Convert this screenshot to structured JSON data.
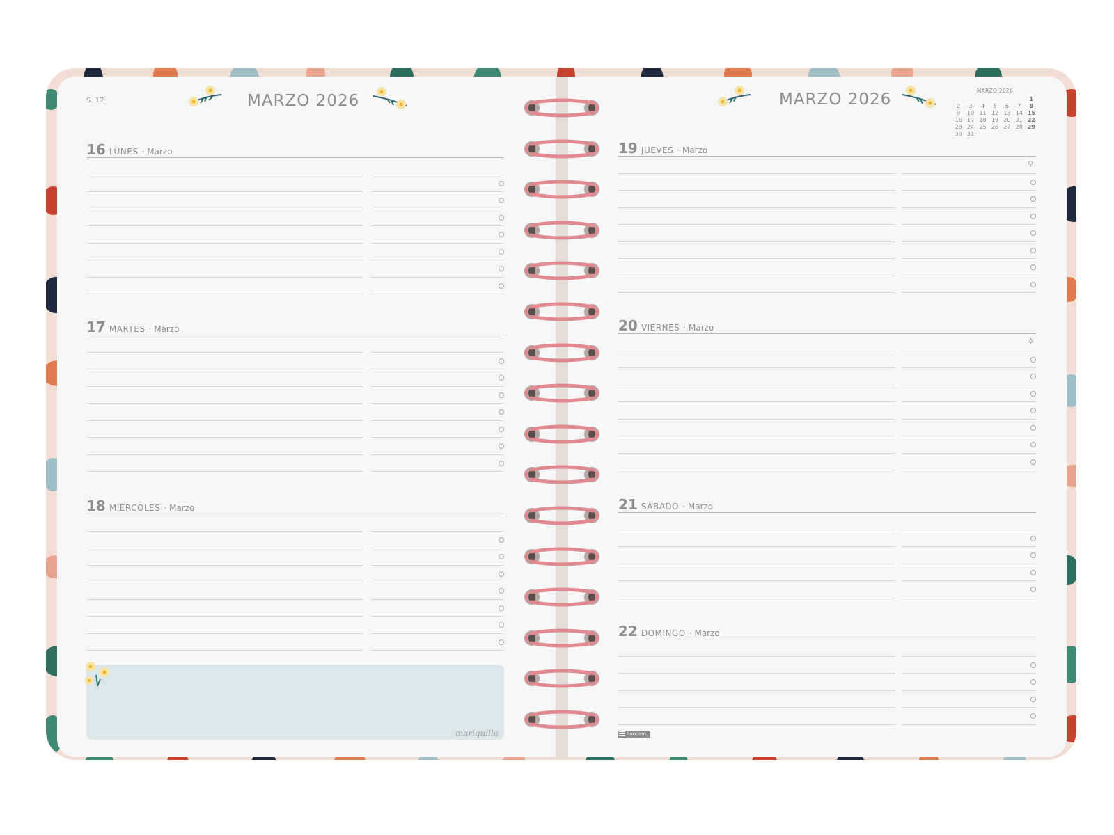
{
  "left_page": {
    "week": "S. 12",
    "month_title": "MARZO 2026",
    "days": [
      {
        "num": "16",
        "name": "LUNES",
        "month": "· Marzo"
      },
      {
        "num": "17",
        "name": "MARTES",
        "month": "· Marzo"
      },
      {
        "num": "18",
        "name": "MIÉRCOLES",
        "month": "· Marzo"
      }
    ],
    "signature": "mariquilla"
  },
  "right_page": {
    "month_title": "MARZO 2026",
    "days": [
      {
        "num": "19",
        "name": "JUEVES",
        "month": "· Marzo"
      },
      {
        "num": "20",
        "name": "VIERNES",
        "month": "· Marzo"
      },
      {
        "num": "21",
        "name": "SÁBADO",
        "month": "· Marzo"
      },
      {
        "num": "22",
        "name": "DOMINGO",
        "month": "· Marzo"
      }
    ],
    "mini_calendar": {
      "title": "MARZO 2026",
      "cells": [
        "",
        "",
        "",
        "",
        "",
        "",
        "1",
        "2",
        "3",
        "4",
        "5",
        "6",
        "7",
        "8",
        "9",
        "10",
        "11",
        "12",
        "13",
        "14",
        "15",
        "16",
        "17",
        "18",
        "19",
        "20",
        "21",
        "22",
        "23",
        "24",
        "25",
        "26",
        "27",
        "28",
        "29",
        "30",
        "31",
        "",
        "",
        "",
        "",
        ""
      ]
    },
    "brand": "finocam"
  },
  "colors": {
    "cover": "#f1ddd3",
    "page": "#f7f7f7",
    "notes": "#dbe7ea",
    "ring": "#e08a8f"
  },
  "icons": [
    "flower-icon",
    "checkbox-icon",
    "person-icon",
    "sun-icon",
    "finocam-logo-icon"
  ]
}
